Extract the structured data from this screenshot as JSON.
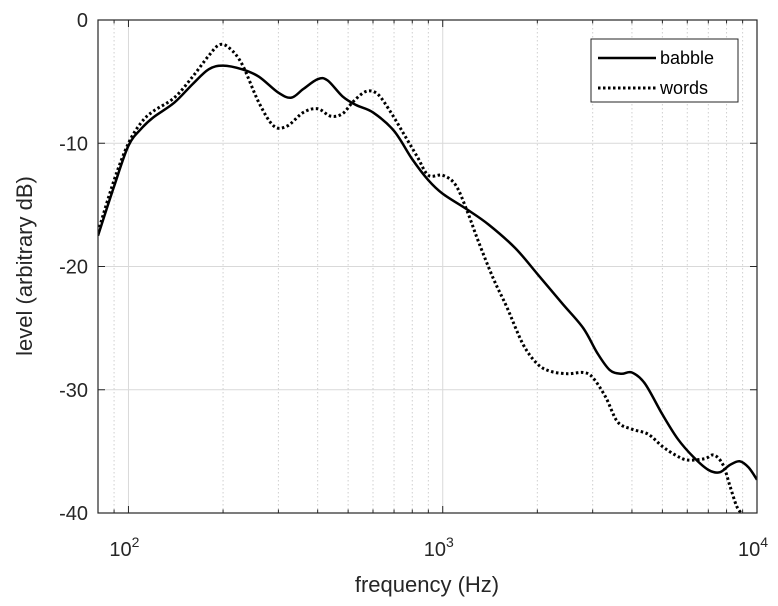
{
  "chart_data": {
    "type": "line",
    "title": "",
    "xlabel": "frequency (Hz)",
    "ylabel": "level (arbitrary dB)",
    "xscale": "log",
    "xlim": [
      80,
      10000
    ],
    "ylim": [
      -40,
      0
    ],
    "grid": true,
    "minor_grid": true,
    "legend_position": "top-right",
    "x_ticks": [
      {
        "value": 100,
        "base": "10",
        "exp": "2"
      },
      {
        "value": 1000,
        "base": "10",
        "exp": "3"
      },
      {
        "value": 10000,
        "base": "10",
        "exp": "4"
      }
    ],
    "y_ticks": [
      {
        "value": 0,
        "label": "0"
      },
      {
        "value": -10,
        "label": "-10"
      },
      {
        "value": -20,
        "label": "-20"
      },
      {
        "value": -30,
        "label": "-30"
      },
      {
        "value": -40,
        "label": "-40"
      }
    ],
    "series": [
      {
        "name": "babble",
        "style": "solid",
        "color": "#000000",
        "points": [
          [
            80,
            -17.5
          ],
          [
            90,
            -13.5
          ],
          [
            100,
            -10.2
          ],
          [
            110,
            -8.8
          ],
          [
            120,
            -7.9
          ],
          [
            140,
            -6.7
          ],
          [
            160,
            -5.2
          ],
          [
            180,
            -4.0
          ],
          [
            200,
            -3.7
          ],
          [
            230,
            -4.0
          ],
          [
            260,
            -4.6
          ],
          [
            300,
            -5.9
          ],
          [
            330,
            -6.3
          ],
          [
            360,
            -5.6
          ],
          [
            400,
            -4.8
          ],
          [
            430,
            -4.9
          ],
          [
            480,
            -6.2
          ],
          [
            530,
            -6.9
          ],
          [
            600,
            -7.5
          ],
          [
            700,
            -9.0
          ],
          [
            800,
            -11.3
          ],
          [
            900,
            -13.0
          ],
          [
            1000,
            -14.1
          ],
          [
            1200,
            -15.4
          ],
          [
            1400,
            -16.6
          ],
          [
            1700,
            -18.5
          ],
          [
            2000,
            -20.6
          ],
          [
            2400,
            -23.0
          ],
          [
            2800,
            -25.0
          ],
          [
            3100,
            -27.0
          ],
          [
            3400,
            -28.4
          ],
          [
            3700,
            -28.7
          ],
          [
            4000,
            -28.6
          ],
          [
            4400,
            -29.5
          ],
          [
            5000,
            -32.0
          ],
          [
            5600,
            -34.0
          ],
          [
            6300,
            -35.5
          ],
          [
            7000,
            -36.5
          ],
          [
            7600,
            -36.7
          ],
          [
            8200,
            -36.1
          ],
          [
            8800,
            -35.8
          ],
          [
            9400,
            -36.3
          ],
          [
            10000,
            -37.3
          ]
        ]
      },
      {
        "name": "words",
        "style": "dotted",
        "color": "#000000",
        "points": [
          [
            80,
            -17.2
          ],
          [
            90,
            -13.0
          ],
          [
            100,
            -10.0
          ],
          [
            110,
            -8.3
          ],
          [
            120,
            -7.4
          ],
          [
            140,
            -6.3
          ],
          [
            160,
            -4.6
          ],
          [
            180,
            -2.9
          ],
          [
            195,
            -2.0
          ],
          [
            210,
            -2.3
          ],
          [
            230,
            -3.6
          ],
          [
            260,
            -6.7
          ],
          [
            290,
            -8.6
          ],
          [
            320,
            -8.6
          ],
          [
            360,
            -7.5
          ],
          [
            400,
            -7.2
          ],
          [
            440,
            -7.8
          ],
          [
            480,
            -7.6
          ],
          [
            520,
            -6.6
          ],
          [
            570,
            -5.8
          ],
          [
            620,
            -6.0
          ],
          [
            680,
            -7.4
          ],
          [
            750,
            -9.2
          ],
          [
            830,
            -11.1
          ],
          [
            900,
            -12.6
          ],
          [
            1000,
            -12.6
          ],
          [
            1100,
            -13.4
          ],
          [
            1200,
            -15.6
          ],
          [
            1300,
            -18.0
          ],
          [
            1450,
            -21.0
          ],
          [
            1600,
            -23.3
          ],
          [
            1800,
            -26.3
          ],
          [
            2000,
            -27.9
          ],
          [
            2200,
            -28.5
          ],
          [
            2500,
            -28.7
          ],
          [
            2800,
            -28.6
          ],
          [
            3000,
            -29.0
          ],
          [
            3300,
            -30.6
          ],
          [
            3600,
            -32.6
          ],
          [
            4000,
            -33.2
          ],
          [
            4500,
            -33.6
          ],
          [
            5000,
            -34.6
          ],
          [
            5500,
            -35.3
          ],
          [
            6000,
            -35.7
          ],
          [
            6800,
            -35.6
          ],
          [
            7300,
            -35.3
          ],
          [
            7800,
            -36.1
          ],
          [
            8200,
            -37.8
          ],
          [
            8600,
            -39.4
          ],
          [
            8900,
            -40.0
          ]
        ]
      }
    ]
  }
}
